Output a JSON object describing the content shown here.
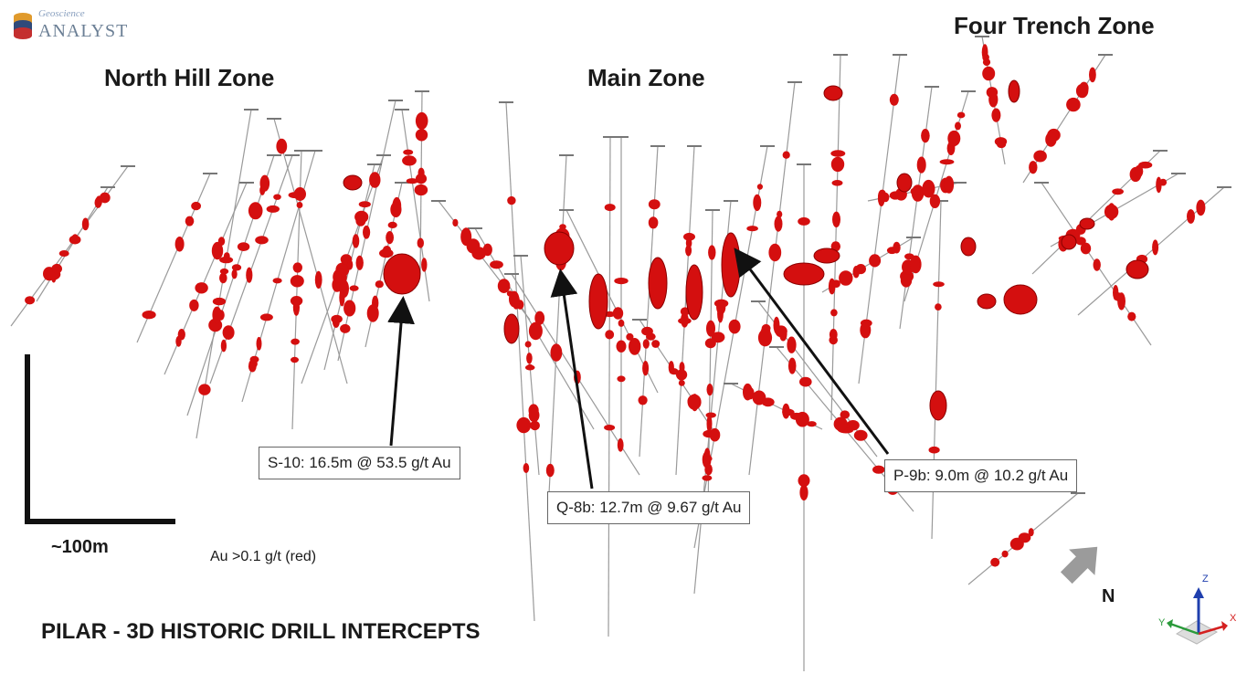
{
  "logo": {
    "subtitle": "Geoscience",
    "name": "ANALYST"
  },
  "zones": {
    "north_hill": "North Hill Zone",
    "main": "Main Zone",
    "four_trench": "Four Trench Zone"
  },
  "callouts": {
    "s10": "S-10: 16.5m @ 53.5 g/t Au",
    "q8b": "Q-8b: 12.7m @ 9.67 g/t Au",
    "p9b": "P-9b: 9.0m @ 10.2 g/t Au"
  },
  "scale": {
    "label": "~100m"
  },
  "legend": {
    "text": "Au >0.1 g/t (red)"
  },
  "title": "PILAR -  3D HISTORIC DRILL INTERCEPTS",
  "north_arrow": {
    "label": "N"
  },
  "axes": {
    "z": "Z",
    "x": "X",
    "y": "Y"
  },
  "colors": {
    "intercept": "#d40f0f",
    "drill_trace": "#9a9a9a",
    "arrow": "#9b9b9b",
    "axis_z": "#1f3fae",
    "axis_x": "#d42020",
    "axis_y": "#2a9a3a"
  }
}
